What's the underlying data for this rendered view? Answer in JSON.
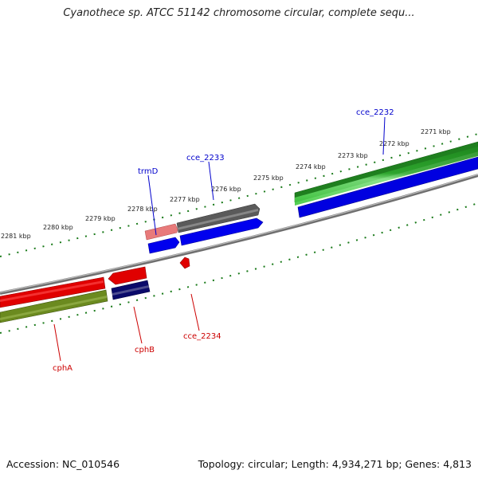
{
  "title": "Cyanothece sp. ATCC 51142 chromosome circular, complete sequ...",
  "footer": {
    "accession": "Accession: NC_010546",
    "topology": "Topology: circular; Length: 4,934,271 bp; Genes: 4,813"
  },
  "scale": {
    "tick_labels": [
      "2271 kbp",
      "2272 kbp",
      "2273 kbp",
      "2274 kbp",
      "2275 kbp",
      "2276 kbp",
      "2277 kbp",
      "2278 kbp",
      "2279 kbp",
      "2280 kbp",
      "2281 kbp"
    ]
  },
  "labels": {
    "forward": [
      "cce_2232",
      "cce_2233",
      "trmD"
    ],
    "reverse": [
      "cce_2234",
      "cphB",
      "cphA"
    ]
  },
  "colors": {
    "forward_label": "#0000cc",
    "reverse_label": "#cc0000",
    "tick": "#1a7a1a",
    "backbone": "#888888"
  }
}
